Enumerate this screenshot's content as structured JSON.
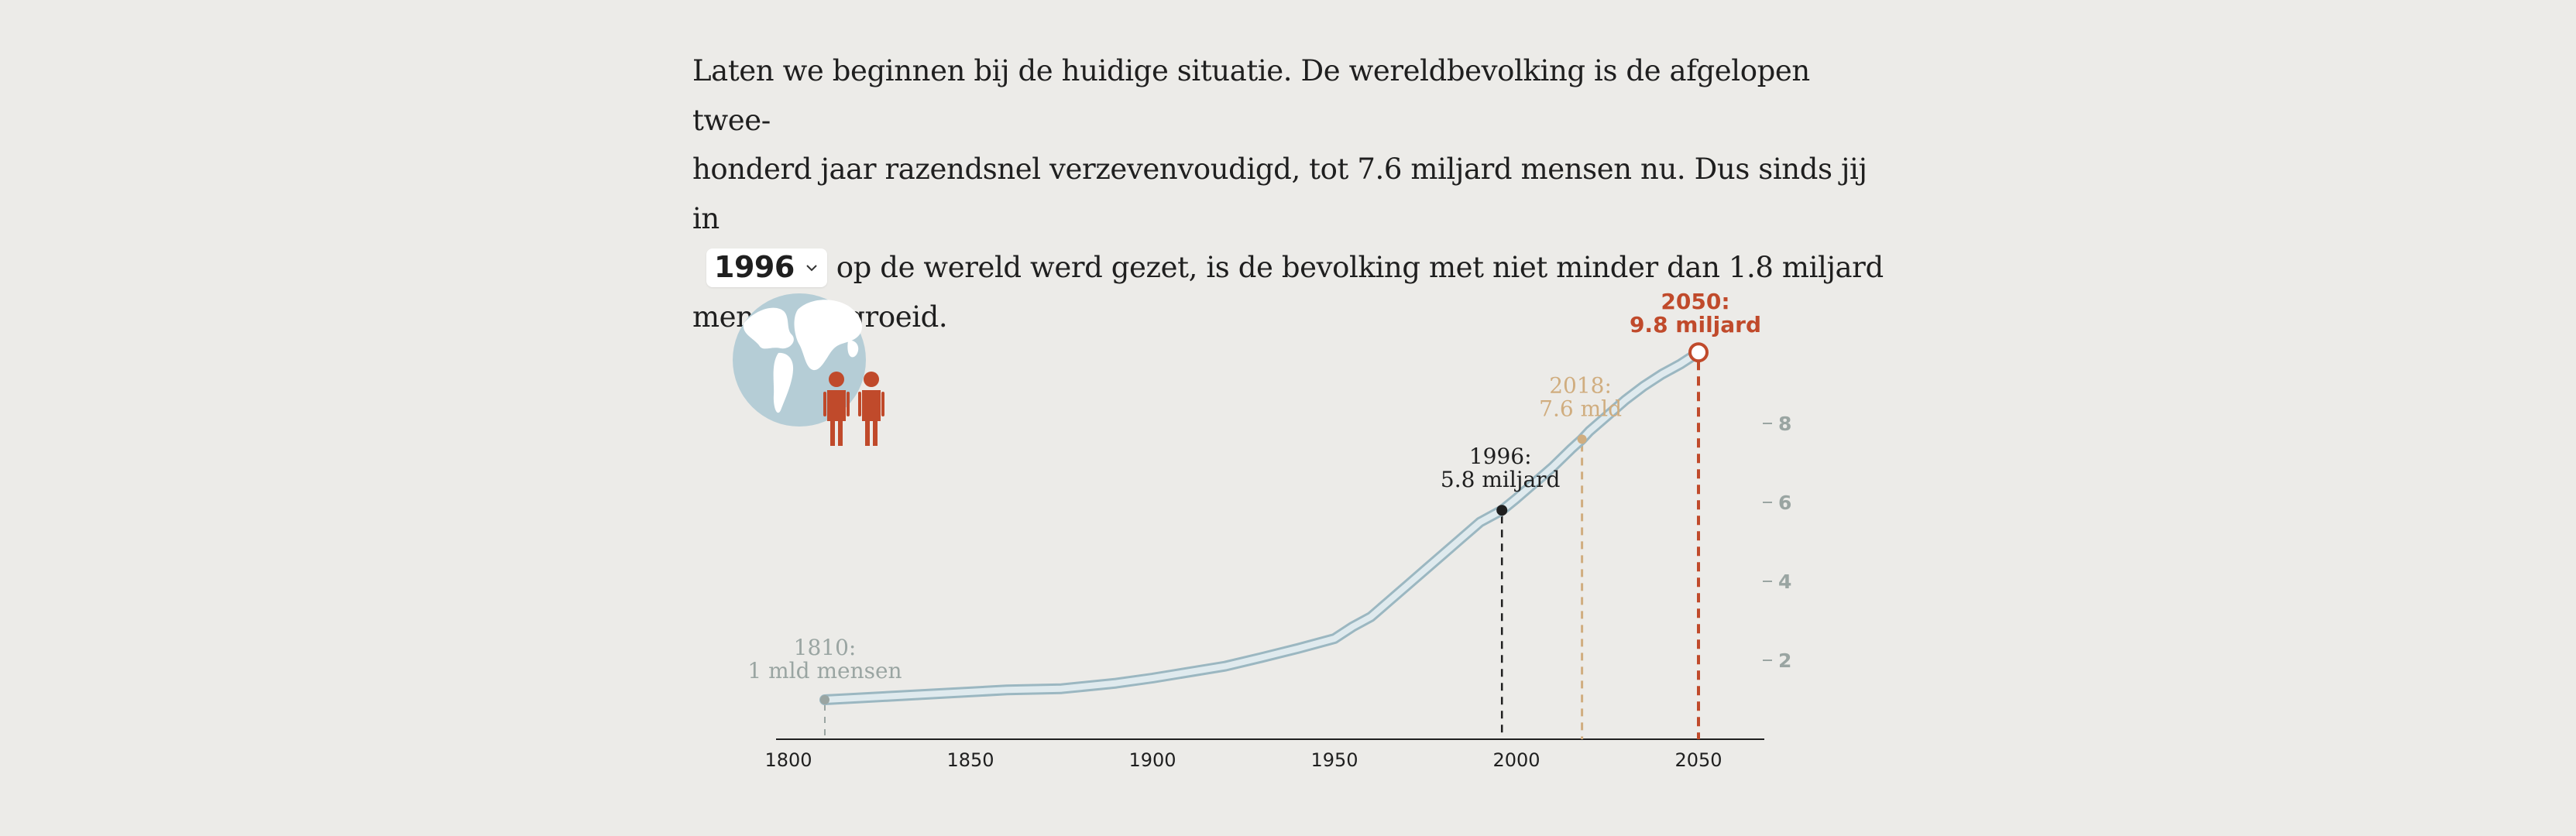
{
  "intro": {
    "line1": "Laten we beginnen bij de huidige situatie. De wereldbevolking is de afgelopen twee-",
    "line2": "honderd jaar razendsnel verzevenvoudigd, tot 7.6 miljard mensen nu. Dus sinds jij in",
    "line3_after": "op de wereld werd gezet, is de bevolking met niet minder dan 1.8 miljard",
    "line4": "mensen gegroeid."
  },
  "year_select": {
    "value": "1996"
  },
  "icons": {
    "globe": "globe-icon",
    "people": "people-icon",
    "chevron": "chevron-down-icon"
  },
  "colors": {
    "background": "#ecebe8",
    "curve": "#b5cdd6",
    "curve_outline": "#9bb7c1",
    "marker_1810": "#9aa5a2",
    "marker_1996": "#1f1f1f",
    "marker_2018": "#d0ad7f",
    "marker_2050": "#c04a2b",
    "axis_ticks": "#9aa5a2",
    "people": "#c04a2b",
    "globe": "#b5cdd6"
  },
  "chart_data": {
    "type": "line",
    "x_range": [
      1800,
      2062
    ],
    "y_range": [
      0,
      10
    ],
    "x_ticks": [
      1800,
      1850,
      1900,
      1950,
      2000,
      2050
    ],
    "y_ticks": [
      2,
      4,
      6,
      8
    ],
    "series": [
      {
        "x": [
          1810,
          1820,
          1840,
          1860,
          1875,
          1890,
          1900,
          1920,
          1930,
          1940,
          1950,
          1955,
          1960,
          1965,
          1970,
          1975,
          1980,
          1985,
          1990,
          1996,
          2000,
          2005,
          2010,
          2015,
          2018,
          2020,
          2025,
          2030,
          2035,
          2040,
          2045,
          2050
        ],
        "y": [
          1.0,
          1.05,
          1.15,
          1.25,
          1.28,
          1.42,
          1.55,
          1.85,
          2.07,
          2.3,
          2.55,
          2.85,
          3.1,
          3.5,
          3.9,
          4.3,
          4.7,
          5.1,
          5.5,
          5.8,
          6.1,
          6.5,
          6.9,
          7.35,
          7.6,
          7.8,
          8.2,
          8.6,
          8.95,
          9.25,
          9.5,
          9.8
        ]
      }
    ],
    "annotations": [
      {
        "year": 1810,
        "value": 1.0,
        "label_line1": "1810:",
        "label_line2": "1 mld mensen"
      },
      {
        "year": 1996,
        "value": 5.8,
        "label_line1": "1996:",
        "label_line2": "5.8 miljard"
      },
      {
        "year": 2018,
        "value": 7.6,
        "label_line1": "2018:",
        "label_line2": "7.6 mld"
      },
      {
        "year": 2050,
        "value": 9.8,
        "label_line1": "2050:",
        "label_line2": "9.8 miljard"
      }
    ]
  }
}
